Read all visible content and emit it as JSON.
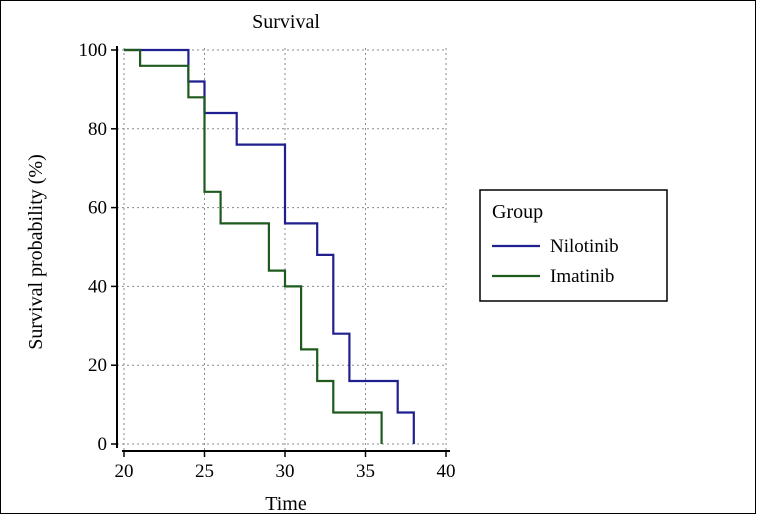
{
  "chart_data": {
    "type": "line",
    "subtype": "kaplan-meier step",
    "title": "Survival",
    "xlabel": "Time",
    "ylabel": "Survival probability (%)",
    "xlim": [
      20,
      40
    ],
    "ylim": [
      0,
      100
    ],
    "xticks": [
      20,
      25,
      30,
      35,
      40
    ],
    "yticks": [
      0,
      20,
      40,
      60,
      80,
      100
    ],
    "grid": true,
    "grid_style": "dotted",
    "legend": {
      "title": "Group",
      "placement": "right"
    },
    "series": [
      {
        "name": "Nilotinib",
        "color": "#1f1f8f",
        "x": [
          20,
          24,
          24,
          25,
          25,
          27,
          27,
          30,
          30,
          32,
          32,
          33,
          33,
          34,
          34,
          37,
          37,
          38,
          38
        ],
        "y": [
          100,
          100,
          92,
          92,
          84,
          84,
          76,
          76,
          56,
          56,
          48,
          48,
          28,
          28,
          16,
          16,
          8,
          8,
          0
        ]
      },
      {
        "name": "Imatinib",
        "color": "#1e5a1e",
        "x": [
          20,
          21,
          21,
          24,
          24,
          25,
          25,
          26,
          26,
          29,
          29,
          30,
          30,
          31,
          31,
          32,
          32,
          33,
          33,
          36,
          36
        ],
        "y": [
          100,
          100,
          96,
          96,
          88,
          88,
          64,
          64,
          56,
          56,
          44,
          44,
          40,
          40,
          24,
          24,
          16,
          16,
          8,
          8,
          0
        ]
      }
    ]
  }
}
